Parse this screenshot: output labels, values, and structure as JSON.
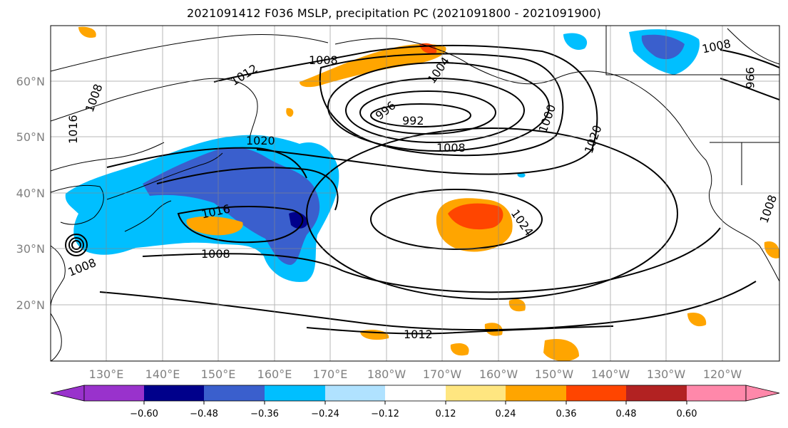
{
  "title": "2021091412 F036 MSLP, precipitation PC (2021091800 - 2021091900)",
  "lat_labels": [
    "60°N",
    "50°N",
    "40°N",
    "30°N",
    "20°N"
  ],
  "lon_labels": [
    "130°E",
    "140°E",
    "150°E",
    "160°E",
    "170°E",
    "180°W",
    "170°W",
    "160°W",
    "150°W",
    "140°W",
    "130°W",
    "120°W"
  ],
  "isobar_labels": [
    "1008",
    "1012",
    "1004",
    "996",
    "992",
    "1000",
    "1008",
    "1020",
    "1020",
    "1016",
    "1016",
    "1008",
    "1008",
    "1024",
    "1012",
    "1008",
    "1008",
    "996",
    "1008"
  ],
  "colorbar": {
    "ticks": [
      "−0.60",
      "−0.48",
      "−0.36",
      "−0.24",
      "−0.12",
      "0.12",
      "0.24",
      "0.36",
      "0.48",
      "0.60"
    ],
    "colors": [
      "#9932cc",
      "#00008b",
      "#3a5fcd",
      "#00bfff",
      "#b0e2ff",
      "#ffffff",
      "#ffe680",
      "#ffa500",
      "#ff4500",
      "#b22222",
      "#ff88aa"
    ]
  },
  "chart_data": {
    "type": "heatmap",
    "title": "2021091412 F036 MSLP, precipitation PC (2021091800 - 2021091900)",
    "fields": [
      "mean sea level pressure contours",
      "precipitation PC shading"
    ],
    "lat_range": [
      "10°N",
      "70°N"
    ],
    "lon_range": [
      "120°E",
      "115°W"
    ],
    "isobars": [
      "992",
      "996",
      "1000",
      "1004",
      "1008",
      "1012",
      "1016",
      "1020",
      "1024"
    ],
    "colorbar_levels": [
      -0.6,
      -0.48,
      -0.36,
      -0.24,
      -0.12,
      0.12,
      0.24,
      0.36,
      0.48,
      0.6
    ],
    "grid": true
  }
}
